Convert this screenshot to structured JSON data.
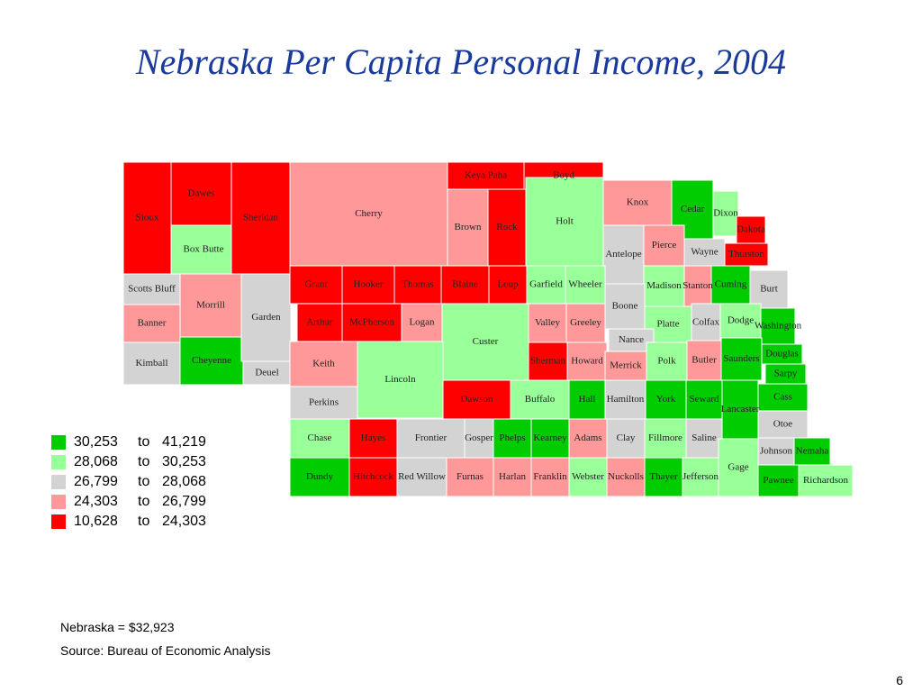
{
  "title": "Nebraska Per Capita Personal Income, 2004",
  "counties": [
    {
      "name": "Sioux",
      "color": "#ff0000"
    },
    {
      "name": "Dawes",
      "color": "#ff0000"
    },
    {
      "name": "Box Butte",
      "color": "#99ff99"
    },
    {
      "name": "Sheridan",
      "color": "#ff0000"
    },
    {
      "name": "Cherry",
      "color": "#ff9999"
    },
    {
      "name": "Keya Paha",
      "color": "#ff0000"
    },
    {
      "name": "Boyd",
      "color": "#ff0000"
    },
    {
      "name": "Brown",
      "color": "#ff9999"
    },
    {
      "name": "Rock",
      "color": "#ff0000"
    },
    {
      "name": "Holt",
      "color": "#99ff99"
    },
    {
      "name": "Knox",
      "color": "#ff9999"
    },
    {
      "name": "Cedar",
      "color": "#00cc00"
    },
    {
      "name": "Dixon",
      "color": "#99ff99"
    },
    {
      "name": "Dakota",
      "color": "#ff0000"
    },
    {
      "name": "Thurston",
      "color": "#ff0000"
    },
    {
      "name": "Antelope",
      "color": "#d3d3d3"
    },
    {
      "name": "Pierce",
      "color": "#ff9999"
    },
    {
      "name": "Wayne",
      "color": "#d3d3d3"
    },
    {
      "name": "Madison",
      "color": "#99ff99"
    },
    {
      "name": "Stanton",
      "color": "#ff9999"
    },
    {
      "name": "Cuming",
      "color": "#00cc00"
    },
    {
      "name": "Burt",
      "color": "#d3d3d3"
    },
    {
      "name": "Scotts Bluff",
      "color": "#d3d3d3"
    },
    {
      "name": "Banner",
      "color": "#ff9999"
    },
    {
      "name": "Kimball",
      "color": "#d3d3d3"
    },
    {
      "name": "Morrill",
      "color": "#ff9999"
    },
    {
      "name": "Cheyenne",
      "color": "#00cc00"
    },
    {
      "name": "Garden",
      "color": "#d3d3d3"
    },
    {
      "name": "Deuel",
      "color": "#d3d3d3"
    },
    {
      "name": "Grant",
      "color": "#ff0000"
    },
    {
      "name": "Hooker",
      "color": "#ff0000"
    },
    {
      "name": "Thomas",
      "color": "#ff0000"
    },
    {
      "name": "Blaine",
      "color": "#ff0000"
    },
    {
      "name": "Loup",
      "color": "#ff0000"
    },
    {
      "name": "Garfield",
      "color": "#99ff99"
    },
    {
      "name": "Wheeler",
      "color": "#99ff99"
    },
    {
      "name": "Boone",
      "color": "#d3d3d3"
    },
    {
      "name": "Platte",
      "color": "#99ff99"
    },
    {
      "name": "Colfax",
      "color": "#d3d3d3"
    },
    {
      "name": "Dodge",
      "color": "#99ff99"
    },
    {
      "name": "Washington",
      "color": "#00cc00"
    },
    {
      "name": "Arthur",
      "color": "#ff0000"
    },
    {
      "name": "McPherson",
      "color": "#ff0000"
    },
    {
      "name": "Logan",
      "color": "#ff9999"
    },
    {
      "name": "Custer",
      "color": "#99ff99"
    },
    {
      "name": "Valley",
      "color": "#ff9999"
    },
    {
      "name": "Greeley",
      "color": "#ff9999"
    },
    {
      "name": "Nance",
      "color": "#d3d3d3"
    },
    {
      "name": "Keith",
      "color": "#ff9999"
    },
    {
      "name": "Lincoln",
      "color": "#99ff99"
    },
    {
      "name": "Sherman",
      "color": "#ff0000"
    },
    {
      "name": "Howard",
      "color": "#ff9999"
    },
    {
      "name": "Merrick",
      "color": "#ff9999"
    },
    {
      "name": "Polk",
      "color": "#99ff99"
    },
    {
      "name": "Butler",
      "color": "#ff9999"
    },
    {
      "name": "Saunders",
      "color": "#00cc00"
    },
    {
      "name": "Douglas",
      "color": "#00cc00"
    },
    {
      "name": "Sarpy",
      "color": "#00cc00"
    },
    {
      "name": "Perkins",
      "color": "#d3d3d3"
    },
    {
      "name": "Dawson",
      "color": "#ff0000"
    },
    {
      "name": "Buffalo",
      "color": "#99ff99"
    },
    {
      "name": "Hall",
      "color": "#00cc00"
    },
    {
      "name": "Hamilton",
      "color": "#d3d3d3"
    },
    {
      "name": "York",
      "color": "#00cc00"
    },
    {
      "name": "Seward",
      "color": "#00cc00"
    },
    {
      "name": "Lancaster",
      "color": "#00cc00"
    },
    {
      "name": "Cass",
      "color": "#00cc00"
    },
    {
      "name": "Chase",
      "color": "#99ff99"
    },
    {
      "name": "Hayes",
      "color": "#ff0000"
    },
    {
      "name": "Frontier",
      "color": "#d3d3d3"
    },
    {
      "name": "Gosper",
      "color": "#d3d3d3"
    },
    {
      "name": "Phelps",
      "color": "#00cc00"
    },
    {
      "name": "Kearney",
      "color": "#00cc00"
    },
    {
      "name": "Adams",
      "color": "#ff9999"
    },
    {
      "name": "Clay",
      "color": "#d3d3d3"
    },
    {
      "name": "Fillmore",
      "color": "#99ff99"
    },
    {
      "name": "Saline",
      "color": "#d3d3d3"
    },
    {
      "name": "Otoe",
      "color": "#d3d3d3"
    },
    {
      "name": "Johnson",
      "color": "#d3d3d3"
    },
    {
      "name": "Nemaha",
      "color": "#00cc00"
    },
    {
      "name": "Dundy",
      "color": "#00cc00"
    },
    {
      "name": "Hitchcock",
      "color": "#ff0000"
    },
    {
      "name": "Red Willow",
      "color": "#d3d3d3"
    },
    {
      "name": "Furnas",
      "color": "#ff9999"
    },
    {
      "name": "Harlan",
      "color": "#ff9999"
    },
    {
      "name": "Franklin",
      "color": "#ff9999"
    },
    {
      "name": "Webster",
      "color": "#99ff99"
    },
    {
      "name": "Nuckolls",
      "color": "#ff9999"
    },
    {
      "name": "Thayer",
      "color": "#00cc00"
    },
    {
      "name": "Jefferson",
      "color": "#99ff99"
    },
    {
      "name": "Gage",
      "color": "#99ff99"
    },
    {
      "name": "Pawnee",
      "color": "#00cc00"
    },
    {
      "name": "Richardson",
      "color": "#99ff99"
    }
  ],
  "legend": {
    "word": "to",
    "items": [
      {
        "color": "#00cc00",
        "from": "30,253",
        "to": "41,219"
      },
      {
        "color": "#99ff99",
        "from": "28,068",
        "to": "30,253"
      },
      {
        "color": "#d3d3d3",
        "from": "26,799",
        "to": "28,068"
      },
      {
        "color": "#ff9999",
        "from": "24,303",
        "to": "26,799"
      },
      {
        "color": "#ff0000",
        "from": "10,628",
        "to": "24,303"
      }
    ]
  },
  "note": "Nebraska = $32,923",
  "source": "Source:  Bureau of Economic Analysis",
  "page": "6"
}
